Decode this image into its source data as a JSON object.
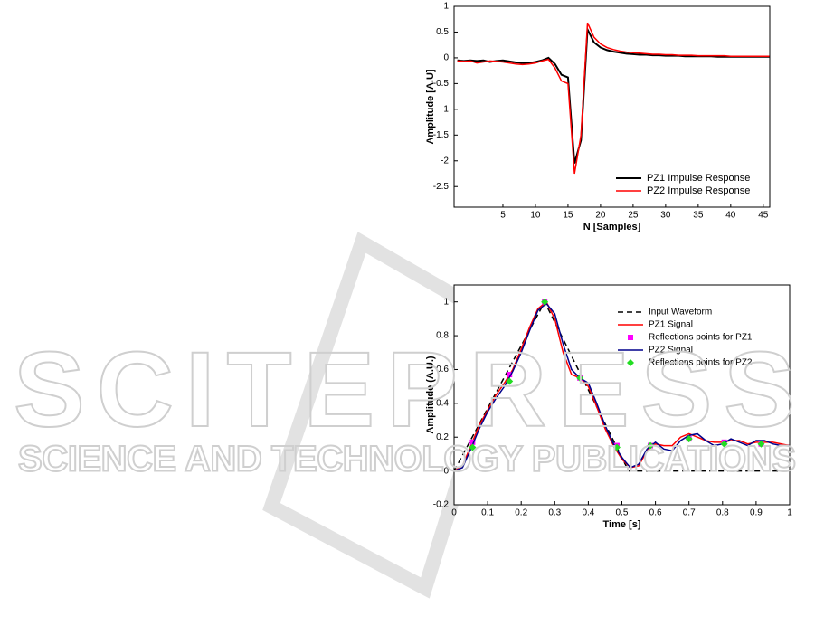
{
  "chart_data": [
    {
      "type": "line",
      "xlabel": "N [Samples]",
      "ylabel": "Amplitude [A.U]",
      "x": [
        -2,
        -1,
        0,
        1,
        2,
        3,
        4,
        5,
        6,
        7,
        8,
        9,
        10,
        11,
        12,
        13,
        14,
        15,
        16,
        17,
        18,
        19,
        20,
        21,
        22,
        23,
        24,
        25,
        26,
        27,
        28,
        29,
        30,
        31,
        32,
        33,
        34,
        35,
        36,
        37,
        38,
        39,
        40,
        41,
        42,
        43,
        44,
        45,
        46
      ],
      "series": [
        {
          "name": "PZ1 Impulse Response",
          "color": "#000000",
          "width": 2,
          "values": [
            -0.05,
            -0.06,
            -0.05,
            -0.06,
            -0.05,
            -0.08,
            -0.06,
            -0.05,
            -0.07,
            -0.09,
            -0.1,
            -0.1,
            -0.08,
            -0.05,
            0.0,
            -0.12,
            -0.33,
            -0.38,
            -2.05,
            -1.6,
            0.55,
            0.3,
            0.2,
            0.15,
            0.12,
            0.1,
            0.08,
            0.07,
            0.06,
            0.06,
            0.05,
            0.05,
            0.04,
            0.04,
            0.04,
            0.03,
            0.03,
            0.03,
            0.03,
            0.03,
            0.02,
            0.02,
            0.02,
            0.02,
            0.02,
            0.02,
            0.02,
            0.02,
            0.02
          ]
        },
        {
          "name": "PZ2 Impulse Response",
          "color": "#ff0000",
          "width": 1.5,
          "values": [
            -0.06,
            -0.07,
            -0.06,
            -0.1,
            -0.08,
            -0.06,
            -0.07,
            -0.08,
            -0.1,
            -0.12,
            -0.13,
            -0.12,
            -0.1,
            -0.06,
            -0.03,
            -0.2,
            -0.45,
            -0.5,
            -2.25,
            -1.5,
            0.68,
            0.4,
            0.27,
            0.2,
            0.16,
            0.13,
            0.11,
            0.1,
            0.09,
            0.08,
            0.07,
            0.07,
            0.06,
            0.06,
            0.05,
            0.05,
            0.05,
            0.04,
            0.04,
            0.04,
            0.04,
            0.04,
            0.03,
            0.03,
            0.03,
            0.03,
            0.03,
            0.03,
            0.03
          ]
        }
      ],
      "xlim": [
        -2.5,
        46
      ],
      "xticks": [
        5,
        10,
        15,
        20,
        25,
        30,
        35,
        40,
        45
      ],
      "ylim": [
        -2.9,
        1
      ],
      "yticks": [
        -2.5,
        -2,
        -1.5,
        -1,
        -0.5,
        0,
        0.5,
        1
      ],
      "grid": false,
      "legend": "lower right"
    },
    {
      "type": "line",
      "xlabel": "Time [s]",
      "ylabel": "Amplitude (A.U.)",
      "series": [
        {
          "name": "Input Waveform",
          "color": "#000000",
          "dash": true,
          "width": 1.5,
          "x": [
            0,
            0.27,
            0.52,
            1
          ],
          "values": [
            0,
            1,
            0,
            0
          ]
        },
        {
          "name": "PZ1 Signal",
          "color": "#ff0000",
          "width": 1.5,
          "x": [
            0,
            0.025,
            0.05,
            0.075,
            0.1,
            0.125,
            0.15,
            0.175,
            0.2,
            0.225,
            0.25,
            0.275,
            0.3,
            0.325,
            0.35,
            0.375,
            0.4,
            0.425,
            0.45,
            0.475,
            0.5,
            0.525,
            0.55,
            0.575,
            0.6,
            0.625,
            0.65,
            0.675,
            0.7,
            0.725,
            0.75,
            0.775,
            0.8,
            0.825,
            0.85,
            0.875,
            0.9,
            0.925,
            0.95,
            0.975,
            1
          ],
          "values": [
            0,
            0.03,
            0.15,
            0.27,
            0.36,
            0.45,
            0.52,
            0.6,
            0.72,
            0.85,
            0.96,
            1.0,
            0.9,
            0.7,
            0.57,
            0.55,
            0.5,
            0.38,
            0.25,
            0.15,
            0.07,
            0.02,
            0.03,
            0.12,
            0.16,
            0.15,
            0.15,
            0.2,
            0.22,
            0.2,
            0.18,
            0.17,
            0.17,
            0.18,
            0.18,
            0.16,
            0.17,
            0.17,
            0.17,
            0.16,
            0.15
          ]
        },
        {
          "name": "Reflections points for PZ1",
          "color": "#ff00ff",
          "marker": "square",
          "x": [
            0.055,
            0.165,
            0.27,
            0.375,
            0.485,
            0.585,
            0.7,
            0.805,
            0.915
          ],
          "values": [
            0.17,
            0.57,
            1.0,
            0.55,
            0.15,
            0.15,
            0.19,
            0.17,
            0.16
          ]
        },
        {
          "name": "PZ2 Signal",
          "color": "#00008b",
          "width": 1.5,
          "x": [
            0,
            0.025,
            0.05,
            0.075,
            0.1,
            0.125,
            0.15,
            0.175,
            0.2,
            0.225,
            0.25,
            0.275,
            0.3,
            0.325,
            0.35,
            0.375,
            0.4,
            0.425,
            0.45,
            0.475,
            0.5,
            0.525,
            0.55,
            0.575,
            0.6,
            0.625,
            0.65,
            0.675,
            0.7,
            0.725,
            0.75,
            0.775,
            0.8,
            0.825,
            0.85,
            0.875,
            0.9,
            0.925,
            0.95,
            0.975,
            1
          ],
          "values": [
            0,
            0.02,
            0.13,
            0.25,
            0.35,
            0.43,
            0.5,
            0.59,
            0.7,
            0.83,
            0.95,
            0.99,
            0.93,
            0.75,
            0.6,
            0.55,
            0.52,
            0.4,
            0.27,
            0.16,
            0.08,
            0.02,
            0.04,
            0.13,
            0.17,
            0.13,
            0.12,
            0.18,
            0.21,
            0.22,
            0.18,
            0.15,
            0.16,
            0.19,
            0.17,
            0.15,
            0.18,
            0.18,
            0.16,
            0.15,
            0.15
          ]
        },
        {
          "name": "Reflections points for PZ2",
          "color": "#22dd22",
          "marker": "diamond",
          "x": [
            0.055,
            0.165,
            0.27,
            0.375,
            0.485,
            0.585,
            0.7,
            0.805,
            0.915
          ],
          "values": [
            0.14,
            0.53,
            1.0,
            0.55,
            0.14,
            0.15,
            0.19,
            0.16,
            0.16
          ]
        }
      ],
      "xlim": [
        0,
        1
      ],
      "xticks": [
        0,
        0.1,
        0.2,
        0.3,
        0.4,
        0.5,
        0.6,
        0.7,
        0.8,
        0.9,
        1
      ],
      "ylim": [
        -0.2,
        1.1
      ],
      "yticks": [
        -0.2,
        0,
        0.2,
        0.4,
        0.6,
        0.8,
        1
      ],
      "grid": false,
      "legend": "upper right"
    }
  ],
  "watermark": {
    "title": "SCITEPRESS",
    "subtitle": "SCIENCE AND TECHNOLOGY PUBLICATIONS"
  }
}
